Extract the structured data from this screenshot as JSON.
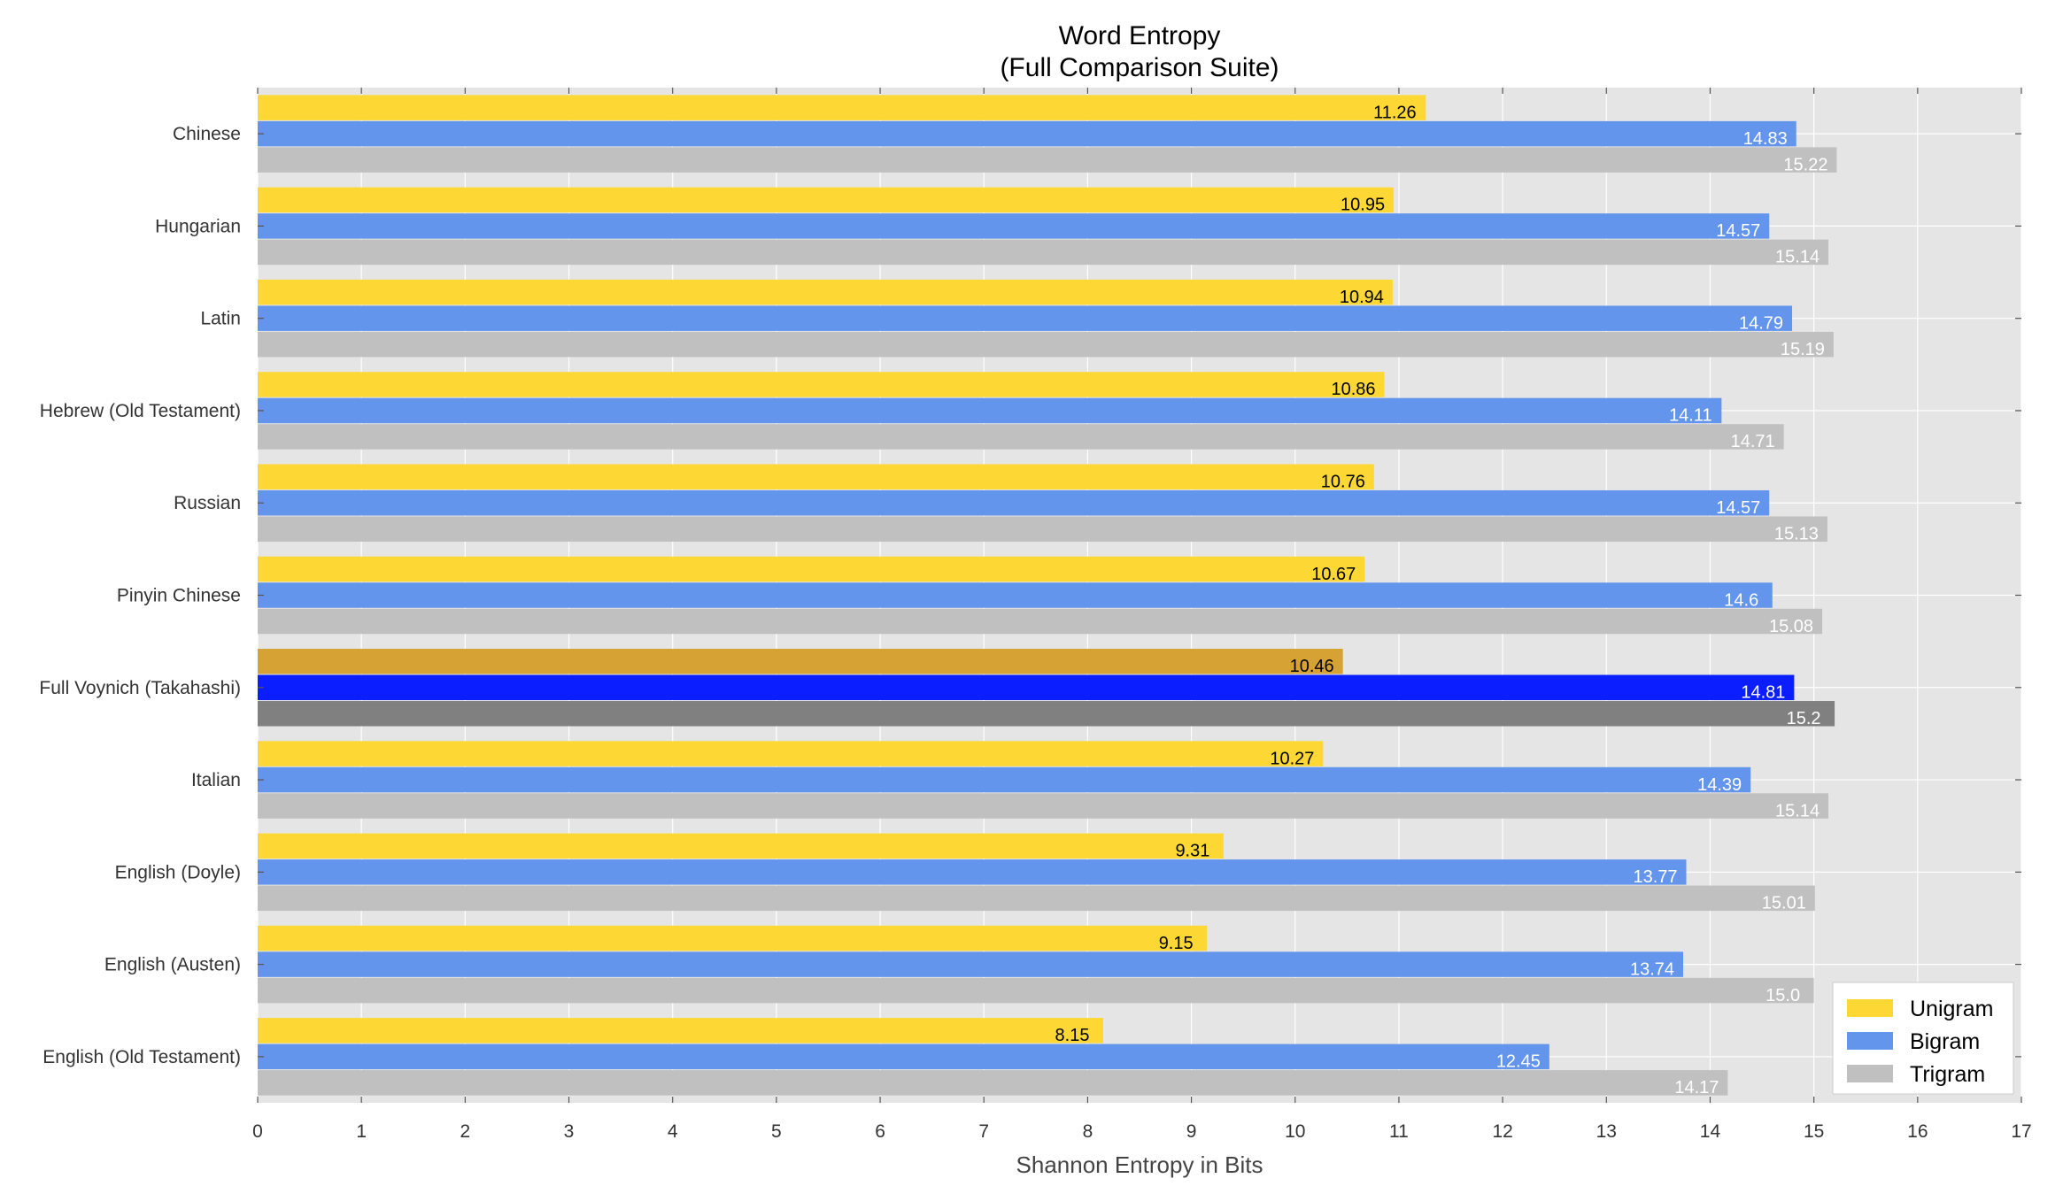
{
  "chart_data": {
    "type": "bar",
    "orientation": "horizontal",
    "title": "Word Entropy",
    "subtitle": "(Full Comparison Suite)",
    "xlabel": "Shannon Entropy in Bits",
    "ylabel": "",
    "xlim": [
      0,
      17
    ],
    "x_ticks": [
      "0",
      "1",
      "2",
      "3",
      "4",
      "5",
      "6",
      "7",
      "8",
      "9",
      "10",
      "11",
      "12",
      "13",
      "14",
      "15",
      "16",
      "17"
    ],
    "grid": true,
    "legend_position": "bottom-right",
    "categories": [
      "Chinese",
      "Hungarian",
      "Latin",
      "Hebrew (Old Testament)",
      "Russian",
      "Pinyin Chinese",
      "Full Voynich (Takahashi)",
      "Italian",
      "English (Doyle)",
      "English (Austen)",
      "English (Old Testament)"
    ],
    "highlight_category": "Full Voynich (Takahashi)",
    "series": [
      {
        "name": "Unigram",
        "color": "#FDD835",
        "highlight_color": "#D6A233",
        "label_color": "#000000",
        "values": [
          11.26,
          10.95,
          10.94,
          10.86,
          10.76,
          10.67,
          10.46,
          10.27,
          9.31,
          9.15,
          8.15
        ],
        "labels": [
          "11.26",
          "10.95",
          "10.94",
          "10.86",
          "10.76",
          "10.67",
          "10.46",
          "10.27",
          "9.31",
          "9.15",
          "8.15"
        ]
      },
      {
        "name": "Bigram",
        "color": "#6495ED",
        "highlight_color": "#0A1EFF",
        "label_color": "#ffffff",
        "values": [
          14.83,
          14.57,
          14.79,
          14.11,
          14.57,
          14.6,
          14.81,
          14.39,
          13.77,
          13.74,
          12.45
        ],
        "labels": [
          "14.83",
          "14.57",
          "14.79",
          "14.11",
          "14.57",
          "14.6",
          "14.81",
          "14.39",
          "13.77",
          "13.74",
          "12.45"
        ]
      },
      {
        "name": "Trigram",
        "color": "#C0C0C0",
        "highlight_color": "#808080",
        "label_color": "#ffffff",
        "values": [
          15.22,
          15.14,
          15.19,
          14.71,
          15.13,
          15.08,
          15.2,
          15.14,
          15.01,
          15.0,
          14.17
        ],
        "labels": [
          "15.22",
          "15.14",
          "15.19",
          "14.71",
          "15.13",
          "15.08",
          "15.2",
          "15.14",
          "15.01",
          "15.0",
          "14.17"
        ]
      }
    ],
    "plot_background": "#E5E5E5",
    "grid_color": "#FFFFFF"
  }
}
